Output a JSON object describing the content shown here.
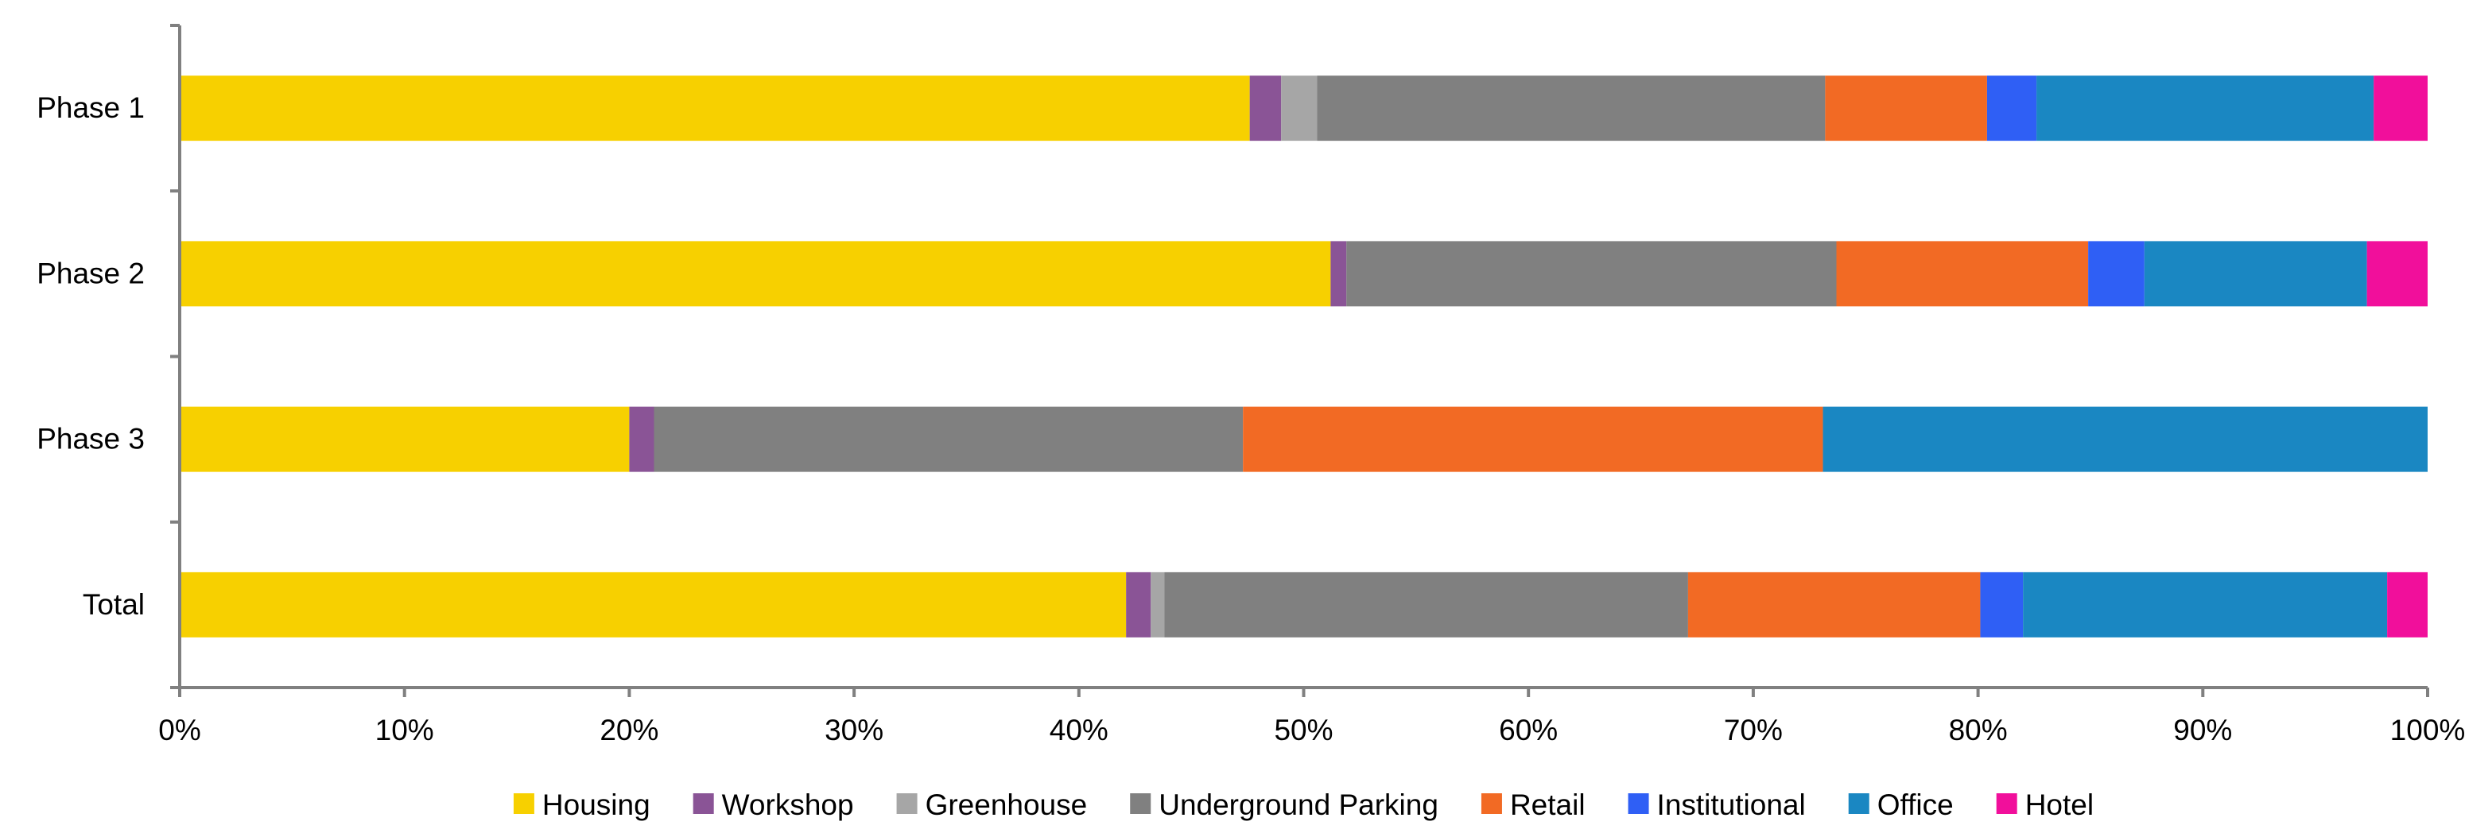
{
  "chart_data": {
    "type": "bar",
    "orientation": "horizontal",
    "stacked": true,
    "categories": [
      "Phase 1",
      "Phase 2",
      "Phase 3",
      "Total"
    ],
    "x_ticks": [
      "0%",
      "10%",
      "20%",
      "30%",
      "40%",
      "50%",
      "60%",
      "70%",
      "80%",
      "90%",
      "100%"
    ],
    "xlim": [
      0,
      100
    ],
    "grid": false,
    "legend_position": "bottom",
    "series": [
      {
        "name": "Housing",
        "color": "#F7D000",
        "values": [
          47.6,
          51.2,
          20.0,
          42.1
        ]
      },
      {
        "name": "Workshop",
        "color": "#8A5496",
        "values": [
          1.4,
          0.7,
          1.1,
          1.1
        ]
      },
      {
        "name": "Greenhouse",
        "color": "#A6A6A6",
        "values": [
          1.6,
          0.0,
          0.0,
          0.6
        ]
      },
      {
        "name": "Underground  Parking",
        "color": "#808080",
        "values": [
          22.6,
          21.8,
          26.2,
          23.3
        ]
      },
      {
        "name": "Retail",
        "color": "#F26A24",
        "values": [
          7.2,
          11.2,
          25.8,
          13.0
        ]
      },
      {
        "name": "Institutional",
        "color": "#2F5FF5",
        "values": [
          2.2,
          2.5,
          0.0,
          1.9
        ]
      },
      {
        "name": "Office",
        "color": "#1A87C2",
        "values": [
          15.0,
          9.9,
          26.9,
          16.2
        ]
      },
      {
        "name": "Hotel",
        "color": "#F10F9B",
        "values": [
          2.4,
          2.7,
          0.0,
          1.8
        ]
      }
    ]
  }
}
